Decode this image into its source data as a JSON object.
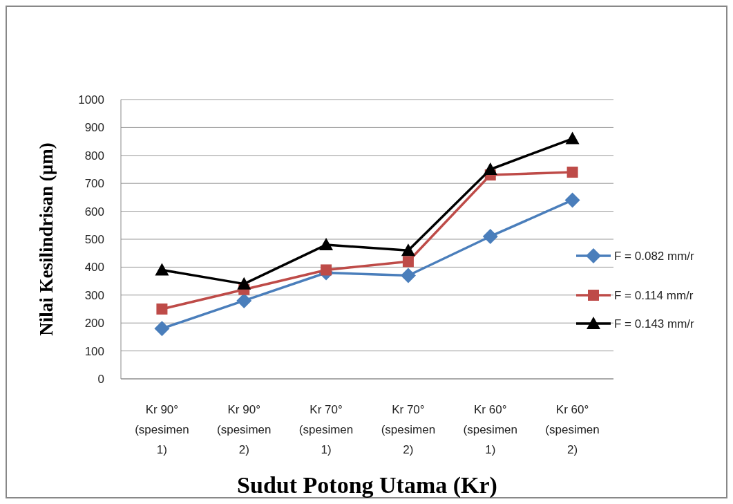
{
  "chart_data": {
    "type": "line",
    "xlabel": "Sudut Potong Utama (Kr)",
    "ylabel": "Nilai Kesilindrisan (µm)",
    "categories": [
      "Kr 90° (spesimen 1)",
      "Kr 90° (spesimen 2)",
      "Kr 70° (spesimen 1)",
      "Kr 70° (spesimen 2)",
      "Kr 60° (spesimen 1)",
      "Kr 60° (spesimen 2)"
    ],
    "series": [
      {
        "name": "F = 0.082 mm/r",
        "color": "#4a7ebb",
        "marker": "diamond",
        "values": [
          180,
          280,
          380,
          370,
          510,
          640
        ]
      },
      {
        "name": "F = 0.114 mm/r",
        "color": "#be4b48",
        "marker": "square",
        "values": [
          250,
          320,
          390,
          420,
          730,
          740
        ]
      },
      {
        "name": "F = 0.143 mm/r",
        "color": "#000000",
        "marker": "triangle",
        "values": [
          390,
          340,
          480,
          460,
          750,
          860
        ]
      }
    ],
    "ylim": [
      0,
      1000
    ],
    "yticks": [
      0,
      100,
      200,
      300,
      400,
      500,
      600,
      700,
      800,
      900,
      1000
    ],
    "grid": "y",
    "legend": "right",
    "line_style": "solid"
  }
}
